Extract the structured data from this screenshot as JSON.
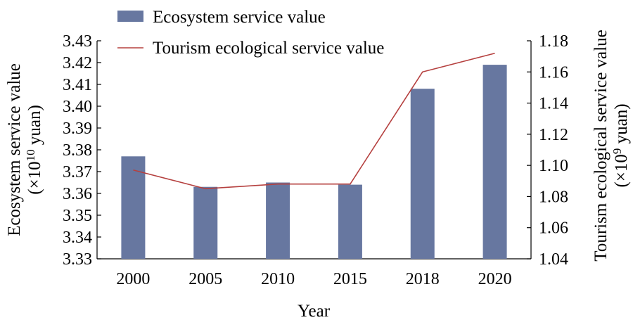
{
  "chart_data": {
    "type": "bar",
    "title": "",
    "categories": [
      "2000",
      "2005",
      "2010",
      "2015",
      "2018",
      "2020"
    ],
    "xlabel": "Year",
    "series": [
      {
        "name": "Ecosystem service value",
        "type": "bar",
        "axis": "left",
        "color": "#6777a0",
        "values": [
          3.377,
          3.363,
          3.365,
          3.364,
          3.408,
          3.419
        ]
      },
      {
        "name": "Tourism ecological service value",
        "type": "line",
        "axis": "right",
        "color": "#b5403f",
        "values": [
          1.097,
          1.085,
          1.088,
          1.088,
          1.16,
          1.172
        ]
      }
    ],
    "y_left": {
      "label_line1": "Ecosystem service value",
      "label_line2_prefix": "(×10",
      "label_line2_exp": "10",
      "label_line2_suffix": " yuan)",
      "ylim": [
        3.33,
        3.43
      ],
      "ticks": [
        "3.33",
        "3.34",
        "3.35",
        "3.36",
        "3.37",
        "3.38",
        "3.39",
        "3.40",
        "3.41",
        "3.42",
        "3.43"
      ]
    },
    "y_right": {
      "label_line1": "Tourism ecological service value",
      "label_line2_prefix": "(×10",
      "label_line2_exp": "9",
      "label_line2_suffix": " yuan)",
      "ylim": [
        1.04,
        1.18
      ],
      "ticks": [
        "1.04",
        "1.06",
        "1.08",
        "1.10",
        "1.12",
        "1.14",
        "1.16",
        "1.18"
      ]
    },
    "grid": false,
    "legend_position": "top-left"
  }
}
